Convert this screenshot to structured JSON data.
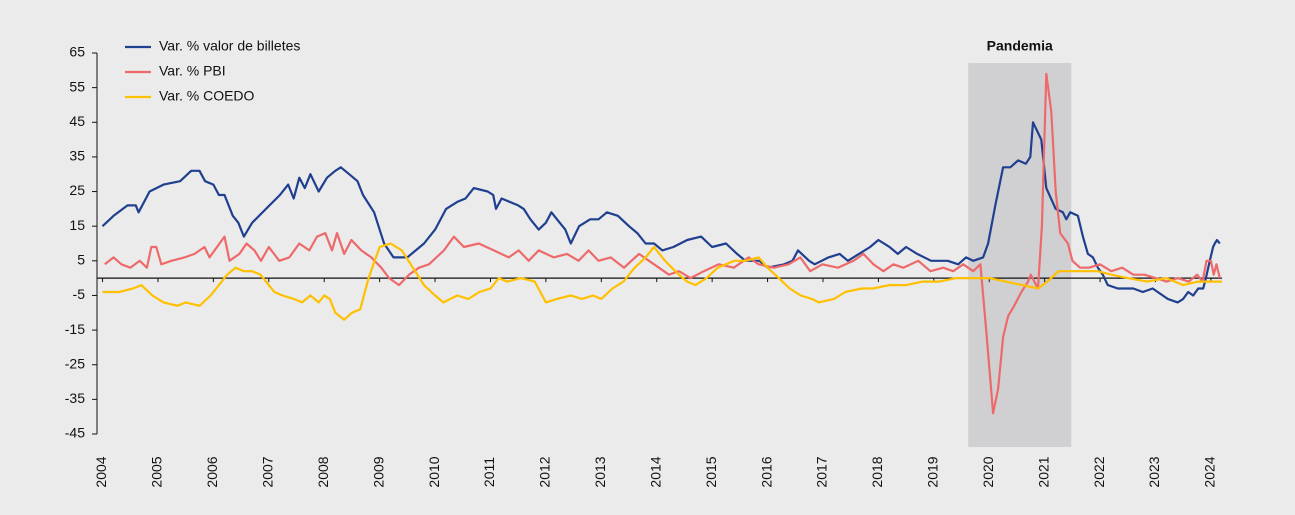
{
  "chart_data": {
    "type": "line",
    "xlim": [
      2003.9,
      2024.2
    ],
    "xticks": [
      2004,
      2005,
      2006,
      2007,
      2008,
      2009,
      2010,
      2011,
      2012,
      2013,
      2014,
      2015,
      2016,
      2017,
      2018,
      2019,
      2020,
      2021,
      2022,
      2023,
      2024
    ],
    "ylim": [
      -45,
      65
    ],
    "yticks": [
      -45,
      -35,
      -25,
      -15,
      -5,
      5,
      15,
      25,
      35,
      45,
      55,
      65
    ],
    "legend": "upper left",
    "shade": {
      "label": "Pandemia",
      "x": [
        2019.62,
        2021.48
      ],
      "color": "#d0d0d2"
    },
    "series": [
      {
        "name": "Var. % valor de billetes",
        "color": "#1f3f8f",
        "x": [
          2004.0,
          2004.2,
          2004.45,
          2004.6,
          2004.65,
          2004.85,
          2005.1,
          2005.4,
          2005.6,
          2005.75,
          2005.85,
          2006.0,
          2006.1,
          2006.2,
          2006.35,
          2006.45,
          2006.55,
          2006.7,
          2006.95,
          2007.2,
          2007.35,
          2007.45,
          2007.55,
          2007.65,
          2007.75,
          2007.9,
          2008.05,
          2008.2,
          2008.3,
          2008.45,
          2008.6,
          2008.7,
          2008.9,
          2009.08,
          2009.25,
          2009.5,
          2009.8,
          2010.0,
          2010.2,
          2010.4,
          2010.55,
          2010.7,
          2010.95,
          2011.05,
          2011.1,
          2011.2,
          2011.5,
          2011.6,
          2011.72,
          2011.87,
          2012.0,
          2012.1,
          2012.25,
          2012.35,
          2012.45,
          2012.6,
          2012.8,
          2012.95,
          2013.1,
          2013.3,
          2013.5,
          2013.65,
          2013.8,
          2013.95,
          2014.1,
          2014.3,
          2014.55,
          2014.8,
          2015.0,
          2015.25,
          2015.45,
          2015.6,
          2015.85,
          2016.0,
          2016.3,
          2016.45,
          2016.55,
          2016.75,
          2016.85,
          2017.1,
          2017.3,
          2017.45,
          2017.65,
          2017.85,
          2018.0,
          2018.2,
          2018.35,
          2018.5,
          2018.7,
          2018.95,
          2019.25,
          2019.44,
          2019.58,
          2019.71,
          2019.89,
          2019.98,
          2020.11,
          2020.25,
          2020.38,
          2020.52,
          2020.66,
          2020.74,
          2020.79,
          2020.94,
          2021.03,
          2021.2,
          2021.33,
          2021.39,
          2021.46,
          2021.6,
          2021.69,
          2021.78,
          2021.87,
          2021.96,
          2022.05,
          2022.14,
          2022.32,
          2022.6,
          2022.77,
          2022.95,
          2023.04,
          2023.22,
          2023.4,
          2023.5,
          2023.59,
          2023.68,
          2023.77,
          2023.86,
          2023.91,
          2023.98,
          2024.04,
          2024.07,
          2024.11,
          2024.16
        ],
        "values": [
          15,
          18,
          21,
          21,
          19,
          25,
          27,
          28,
          31,
          31,
          28,
          27,
          24,
          24,
          18,
          16,
          12,
          16,
          20,
          24,
          27,
          23,
          29,
          26,
          30,
          25,
          29,
          31,
          32,
          30,
          28,
          24,
          19,
          10,
          6,
          6,
          10,
          14,
          20,
          22,
          23,
          26,
          25,
          24,
          20,
          23,
          21,
          20,
          17,
          14,
          16,
          19,
          16,
          14,
          10,
          15,
          17,
          17,
          19,
          18,
          15,
          13,
          10,
          10,
          8,
          9,
          11,
          12,
          9,
          10,
          7,
          5,
          5,
          3,
          4,
          5,
          8,
          5,
          4,
          6,
          7,
          5,
          7,
          9,
          11,
          9,
          7,
          9,
          7,
          5,
          5,
          4,
          6,
          5,
          6,
          10,
          21,
          32,
          32,
          34,
          33,
          35,
          45,
          40,
          26,
          20,
          19,
          17,
          19,
          18,
          12,
          7,
          6,
          3,
          1,
          -2,
          -3,
          -3,
          -4,
          -3,
          -4,
          -6,
          -7,
          -6,
          -4,
          -5,
          -3,
          -3,
          0,
          5,
          9,
          10,
          11,
          10
        ]
      },
      {
        "name": "Var. % PBI",
        "color": "#ee6a6a",
        "x": [
          2004.04,
          2004.2,
          2004.34,
          2004.5,
          2004.67,
          2004.8,
          2004.88,
          2004.97,
          2005.06,
          2005.24,
          2005.48,
          2005.66,
          2005.84,
          2005.93,
          2006.2,
          2006.29,
          2006.47,
          2006.6,
          2006.74,
          2006.86,
          2007.0,
          2007.19,
          2007.37,
          2007.55,
          2007.73,
          2007.87,
          2008.02,
          2008.14,
          2008.23,
          2008.36,
          2008.49,
          2008.67,
          2008.85,
          2009.03,
          2009.17,
          2009.35,
          2009.53,
          2009.71,
          2009.89,
          2010.16,
          2010.34,
          2010.52,
          2010.79,
          2011.06,
          2011.33,
          2011.51,
          2011.69,
          2011.87,
          2012.14,
          2012.38,
          2012.59,
          2012.77,
          2012.95,
          2013.17,
          2013.41,
          2013.68,
          2013.86,
          2014.04,
          2014.22,
          2014.4,
          2014.61,
          2014.85,
          2015.12,
          2015.39,
          2015.66,
          2015.84,
          2016.11,
          2016.38,
          2016.59,
          2016.77,
          2016.99,
          2017.27,
          2017.55,
          2017.73,
          2017.91,
          2018.09,
          2018.27,
          2018.45,
          2018.72,
          2018.94,
          2019.17,
          2019.35,
          2019.53,
          2019.71,
          2019.84,
          2019.95,
          2020.07,
          2020.16,
          2020.25,
          2020.34,
          2020.45,
          2020.58,
          2020.7,
          2020.75,
          2020.88,
          2020.95,
          2021.03,
          2021.12,
          2021.2,
          2021.28,
          2021.42,
          2021.5,
          2021.64,
          2021.8,
          2022.0,
          2022.2,
          2022.4,
          2022.6,
          2022.8,
          2023.0,
          2023.2,
          2023.4,
          2023.6,
          2023.75,
          2023.85,
          2023.92,
          2024.0,
          2024.05,
          2024.1,
          2024.16
        ],
        "values": [
          4,
          6,
          4,
          3,
          5,
          3,
          9,
          9,
          4,
          5,
          6,
          7,
          9,
          6,
          12,
          5,
          7,
          10,
          8,
          5,
          9,
          5,
          6,
          10,
          8,
          12,
          13,
          8,
          13,
          7,
          11,
          8,
          6,
          3,
          0,
          -2,
          1,
          3,
          4,
          8,
          12,
          9,
          10,
          8,
          6,
          8,
          5,
          8,
          6,
          7,
          5,
          8,
          5,
          6,
          3,
          7,
          5,
          3,
          1,
          2,
          0,
          2,
          4,
          3,
          6,
          4,
          3,
          4,
          6,
          2,
          4,
          3,
          5,
          7,
          4,
          2,
          4,
          3,
          5,
          2,
          3,
          2,
          4,
          2,
          4,
          -16,
          -39,
          -32,
          -17,
          -11,
          -8,
          -4,
          -1,
          1,
          -3,
          15,
          59,
          48,
          25,
          13,
          10,
          5,
          3,
          3,
          4,
          2,
          3,
          1,
          1,
          0,
          -1,
          0,
          -1,
          1,
          -1,
          5,
          5,
          1,
          4,
          0
        ]
      },
      {
        "name": "Var. % COEDO",
        "color": "#ffc000",
        "x": [
          2004.0,
          2004.3,
          2004.55,
          2004.7,
          2004.9,
          2005.1,
          2005.35,
          2005.5,
          2005.75,
          2005.95,
          2006.1,
          2006.25,
          2006.4,
          2006.55,
          2006.7,
          2006.85,
          2007.0,
          2007.1,
          2007.25,
          2007.45,
          2007.6,
          2007.75,
          2007.9,
          2008.0,
          2008.1,
          2008.2,
          2008.36,
          2008.5,
          2008.65,
          2008.8,
          2009.0,
          2009.2,
          2009.4,
          2009.6,
          2009.8,
          2010.0,
          2010.15,
          2010.4,
          2010.6,
          2010.8,
          2011.0,
          2011.15,
          2011.3,
          2011.55,
          2011.8,
          2012.0,
          2012.2,
          2012.45,
          2012.65,
          2012.85,
          2013.0,
          2013.2,
          2013.4,
          2013.6,
          2013.8,
          2013.95,
          2014.15,
          2014.4,
          2014.55,
          2014.7,
          2014.9,
          2015.1,
          2015.4,
          2015.6,
          2015.84,
          2016.0,
          2016.2,
          2016.4,
          2016.6,
          2016.8,
          2016.92,
          2017.2,
          2017.4,
          2017.7,
          2017.9,
          2018.2,
          2018.5,
          2018.8,
          2019.1,
          2019.4,
          2019.7,
          2020.0,
          2020.3,
          2020.6,
          2020.88,
          2021.05,
          2021.25,
          2021.5,
          2021.75,
          2021.96,
          2022.2,
          2022.5,
          2022.85,
          2023.2,
          2023.5,
          2023.77,
          2024.0,
          2024.2
        ],
        "values": [
          -4,
          -4,
          -3,
          -2,
          -5,
          -7,
          -8,
          -7,
          -8,
          -5,
          -2,
          1,
          3,
          2,
          2,
          1,
          -2,
          -4,
          -5,
          -6,
          -7,
          -5,
          -7,
          -5,
          -6,
          -10,
          -12,
          -10,
          -9,
          0,
          9,
          10,
          8,
          3,
          -2,
          -5,
          -7,
          -5,
          -6,
          -4,
          -3,
          0,
          -1,
          0,
          -1,
          -7,
          -6,
          -5,
          -6,
          -5,
          -6,
          -3,
          -1,
          3,
          6,
          9,
          5,
          1,
          -1,
          -2,
          0,
          3,
          5,
          5,
          6,
          3,
          0,
          -3,
          -5,
          -6,
          -7,
          -6,
          -4,
          -3,
          -3,
          -2,
          -2,
          -1,
          -1,
          0,
          0,
          0,
          -1,
          -2,
          -3,
          -1,
          2,
          2,
          2,
          2,
          1,
          0,
          -1,
          0,
          -2,
          -1,
          -1,
          -1
        ]
      }
    ]
  }
}
